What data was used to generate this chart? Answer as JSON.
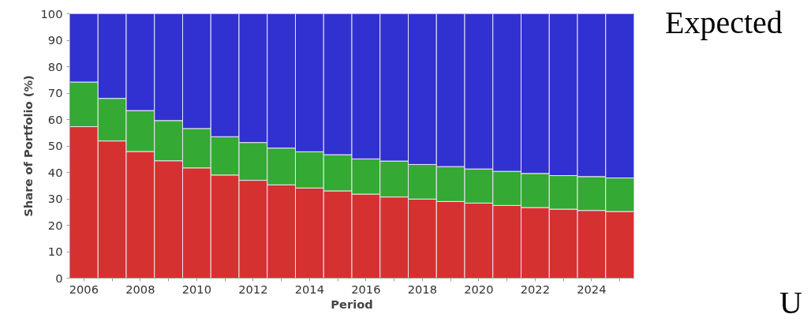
{
  "chart_data": {
    "type": "bar",
    "stacked": true,
    "xlabel": "Period",
    "ylabel": "Share of Portfolio (%)",
    "x": [
      2006,
      2007,
      2008,
      2009,
      2010,
      2011,
      2012,
      2013,
      2014,
      2015,
      2016,
      2017,
      2018,
      2019,
      2020,
      2021,
      2022,
      2023,
      2024,
      2025
    ],
    "series": [
      {
        "color": "#d63131",
        "values": [
          57.3,
          51.9,
          47.9,
          44.4,
          41.7,
          39.0,
          37.0,
          35.3,
          34.1,
          33.0,
          31.8,
          30.7,
          29.9,
          29.0,
          28.4,
          27.5,
          26.7,
          26.1,
          25.6,
          25.2
        ]
      },
      {
        "color": "#34a934",
        "values": [
          16.9,
          16.1,
          15.5,
          15.2,
          14.9,
          14.5,
          14.3,
          13.9,
          13.7,
          13.7,
          13.3,
          13.6,
          13.1,
          13.2,
          12.9,
          12.9,
          12.9,
          12.7,
          12.8,
          12.7
        ]
      },
      {
        "color": "#3131d1",
        "values": [
          25.8,
          32.0,
          36.6,
          40.4,
          43.4,
          46.5,
          48.7,
          50.8,
          52.2,
          53.3,
          54.9,
          55.7,
          57.0,
          57.8,
          58.7,
          59.6,
          60.4,
          61.2,
          61.6,
          62.1
        ]
      }
    ],
    "xlim": [
      2005.5,
      2025.5
    ],
    "ylim": [
      0,
      100
    ],
    "xticks": [
      2006,
      {
        "value": 2007,
        "label": null
      },
      2008,
      {
        "value": 2009,
        "label": null
      },
      2010,
      {
        "value": 2011,
        "label": null
      },
      2012,
      {
        "value": 2013,
        "label": null
      },
      2014,
      {
        "value": 2015,
        "label": null
      },
      2016,
      {
        "value": 2017,
        "label": null
      },
      2018,
      {
        "value": 2019,
        "label": null
      },
      2020,
      {
        "value": 2021,
        "label": null
      },
      2022,
      {
        "value": 2023,
        "label": null
      },
      2024,
      {
        "value": 2025,
        "label": null
      }
    ],
    "yticks": [
      0,
      10,
      20,
      30,
      40,
      50,
      60,
      70,
      80,
      90,
      100
    ],
    "annotations": [
      "Expected",
      "U"
    ]
  }
}
